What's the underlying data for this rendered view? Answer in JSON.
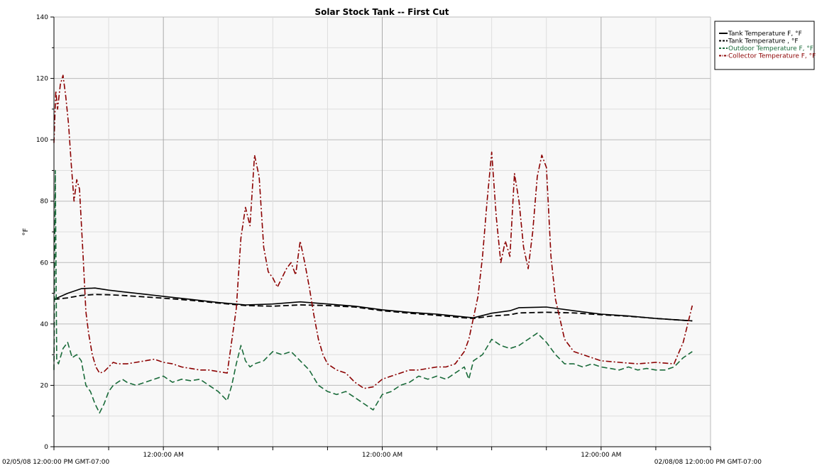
{
  "chart_data": {
    "type": "line",
    "title": "Solar Stock Tank -- First Cut",
    "ylabel": "°F",
    "xlabel": "",
    "ylim": [
      0,
      140
    ],
    "y_ticks": [
      "0",
      "20",
      "40",
      "60",
      "80",
      "100",
      "120",
      "140"
    ],
    "x_start_label": "02/05/08 12:00:00 PM GMT-07:00",
    "x_end_label": "02/08/08 12:00:00 PM GMT-07:00",
    "x_tick_labels": [
      "12:00:00 AM",
      "12:00:00 AM",
      "12:00:00 AM"
    ],
    "x_unit": "hours after 02/05/08 12:00:00 PM",
    "xlim": [
      0,
      72
    ],
    "grid": true,
    "legend_position": "top-right",
    "series": [
      {
        "name": "Tank Temperature F, °F",
        "color": "#000000",
        "style": "solid",
        "x": [
          0.0,
          1.5,
          3.0,
          4.5,
          6.0,
          7.5,
          9.0,
          12.0,
          15.0,
          18.0,
          21.0,
          24.0,
          27.0,
          30.0,
          33.0,
          36.0,
          39.0,
          42.0,
          45.0,
          46.0,
          48.0,
          50.0,
          51.0,
          54.0,
          57.0,
          60.0,
          63.0,
          66.0,
          69.0,
          70.0
        ],
        "y": [
          48.0,
          50.0,
          51.5,
          51.7,
          51.0,
          50.5,
          50.0,
          49.0,
          48.0,
          47.0,
          46.2,
          46.5,
          47.2,
          46.5,
          45.8,
          44.6,
          43.8,
          43.2,
          42.3,
          42.0,
          43.5,
          44.3,
          45.3,
          45.5,
          44.3,
          43.2,
          42.6,
          41.8,
          41.2,
          41.0
        ]
      },
      {
        "name": "Tank Temperature , °F",
        "color": "#000000",
        "style": "dashed",
        "x": [
          0.0,
          1.5,
          3.0,
          4.5,
          6.0,
          7.5,
          9.0,
          12.0,
          15.0,
          18.0,
          21.0,
          24.0,
          27.0,
          30.0,
          33.0,
          36.0,
          39.0,
          42.0,
          45.0,
          46.0,
          48.0,
          50.0,
          51.0,
          54.0,
          57.0,
          60.0,
          63.0,
          66.0,
          69.0,
          70.0
        ],
        "y": [
          48.0,
          48.5,
          49.3,
          49.6,
          49.5,
          49.3,
          49.0,
          48.4,
          47.7,
          46.8,
          46.0,
          45.8,
          46.2,
          46.0,
          45.5,
          44.3,
          43.5,
          42.8,
          42.0,
          41.8,
          42.6,
          43.0,
          43.6,
          43.8,
          43.6,
          43.0,
          42.5,
          41.8,
          41.2,
          41.0
        ]
      },
      {
        "name": "Outdoor Temperature F, °F",
        "color": "#1a6b3a",
        "style": "dashed",
        "x": [
          0.0,
          0.15,
          0.3,
          0.5,
          1.0,
          1.5,
          2.0,
          2.5,
          3.0,
          3.5,
          4.0,
          4.5,
          5.0,
          5.5,
          6.0,
          6.5,
          7.0,
          7.5,
          8.0,
          9.0,
          10.0,
          11.0,
          12.0,
          13.0,
          14.0,
          15.0,
          16.0,
          17.0,
          18.0,
          19.0,
          19.5,
          20.0,
          20.5,
          21.0,
          21.5,
          22.0,
          23.0,
          24.0,
          25.0,
          26.0,
          27.0,
          28.0,
          29.0,
          30.0,
          31.0,
          32.0,
          33.0,
          34.0,
          35.0,
          36.0,
          37.0,
          38.0,
          39.0,
          40.0,
          41.0,
          42.0,
          43.0,
          44.0,
          45.0,
          45.5,
          46.0,
          47.0,
          48.0,
          49.0,
          50.0,
          51.0,
          52.0,
          53.0,
          54.0,
          55.0,
          56.0,
          57.0,
          58.0,
          59.0,
          60.0,
          61.0,
          62.0,
          63.0,
          64.0,
          65.0,
          66.0,
          67.0,
          68.0,
          69.0,
          70.0
        ],
        "y": [
          25.0,
          90.0,
          28.0,
          27.0,
          32.0,
          34.0,
          29.0,
          30.0,
          28.0,
          20.0,
          18.0,
          14.0,
          11.0,
          14.0,
          18.0,
          20.0,
          21.0,
          22.0,
          21.0,
          20.0,
          21.0,
          22.0,
          23.0,
          21.0,
          22.0,
          21.5,
          22.0,
          20.0,
          18.0,
          15.0,
          20.0,
          27.0,
          33.0,
          28.0,
          26.0,
          27.0,
          28.0,
          31.0,
          30.0,
          31.0,
          28.0,
          25.0,
          20.0,
          18.0,
          17.0,
          18.0,
          16.0,
          14.0,
          12.0,
          17.0,
          18.0,
          20.0,
          21.0,
          23.0,
          22.0,
          23.0,
          22.0,
          24.0,
          26.0,
          22.0,
          28.0,
          30.0,
          35.0,
          33.0,
          32.0,
          33.0,
          35.0,
          37.0,
          34.0,
          30.0,
          27.0,
          27.0,
          26.0,
          27.0,
          26.0,
          25.5,
          25.0,
          26.0,
          25.0,
          25.5,
          25.0,
          25.0,
          26.0,
          29.0,
          31.0
        ]
      },
      {
        "name": "Collector Temperature F, °F",
        "color": "#8b0000",
        "style": "dashdot",
        "x": [
          0.0,
          0.2,
          0.4,
          0.7,
          1.0,
          1.3,
          1.6,
          1.9,
          2.2,
          2.5,
          2.8,
          3.2,
          3.5,
          3.8,
          4.2,
          4.6,
          5.0,
          5.5,
          6.0,
          6.5,
          7.0,
          8.0,
          9.0,
          10.0,
          11.0,
          12.0,
          13.0,
          14.0,
          15.0,
          16.0,
          17.0,
          18.0,
          19.0,
          20.0,
          20.5,
          21.0,
          21.5,
          22.0,
          22.5,
          23.0,
          23.5,
          24.0,
          24.5,
          25.0,
          25.5,
          26.0,
          26.5,
          27.0,
          27.5,
          28.0,
          28.5,
          29.0,
          29.5,
          30.0,
          31.0,
          32.0,
          33.0,
          34.0,
          35.0,
          36.0,
          37.0,
          38.0,
          39.0,
          40.0,
          41.0,
          42.0,
          43.0,
          44.0,
          45.0,
          45.5,
          46.0,
          46.5,
          47.0,
          47.5,
          48.0,
          48.5,
          49.0,
          49.5,
          50.0,
          50.5,
          51.0,
          51.5,
          52.0,
          52.5,
          53.0,
          53.5,
          54.0,
          54.5,
          55.0,
          56.0,
          57.0,
          58.0,
          59.0,
          60.0,
          62.0,
          64.0,
          66.0,
          68.0,
          69.0,
          70.0
        ],
        "y": [
          99.0,
          116.0,
          110.0,
          118.0,
          121.0,
          114.0,
          105.0,
          92.0,
          80.0,
          87.0,
          84.0,
          62.0,
          44.0,
          37.0,
          30.0,
          26.0,
          24.0,
          24.5,
          26.0,
          27.5,
          27.0,
          27.0,
          27.5,
          28.0,
          28.5,
          27.5,
          27.0,
          26.0,
          25.5,
          25.0,
          25.0,
          24.5,
          24.0,
          45.0,
          68.0,
          78.0,
          72.0,
          95.0,
          88.0,
          65.0,
          57.0,
          55.0,
          52.0,
          55.0,
          58.0,
          60.0,
          56.0,
          67.0,
          60.0,
          52.0,
          43.0,
          35.0,
          30.0,
          27.0,
          25.0,
          24.0,
          21.0,
          19.0,
          19.5,
          22.0,
          23.0,
          24.0,
          25.0,
          25.0,
          25.5,
          26.0,
          26.0,
          27.0,
          31.0,
          35.0,
          42.0,
          49.0,
          62.0,
          80.0,
          96.0,
          75.0,
          60.0,
          67.0,
          62.0,
          89.0,
          80.0,
          65.0,
          58.0,
          70.0,
          88.0,
          95.0,
          91.0,
          62.0,
          48.0,
          35.0,
          31.0,
          30.0,
          29.0,
          28.0,
          27.5,
          27.0,
          27.5,
          27.0,
          34.0,
          46.0
        ]
      }
    ]
  }
}
